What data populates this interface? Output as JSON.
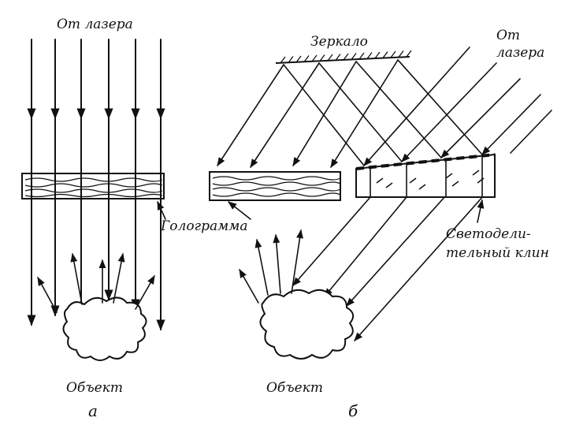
{
  "labels": {
    "a_laser": "От лазера",
    "b_laser_line1": "От",
    "b_laser_line2": "лазера",
    "mirror": "Зеркало",
    "hologram": "Голограмма",
    "splitter_line1": "Светодели-",
    "splitter_line2": "тельный клин",
    "object_a": "Объект",
    "object_b": "Объект",
    "panel_a": "а",
    "panel_b": "б"
  }
}
